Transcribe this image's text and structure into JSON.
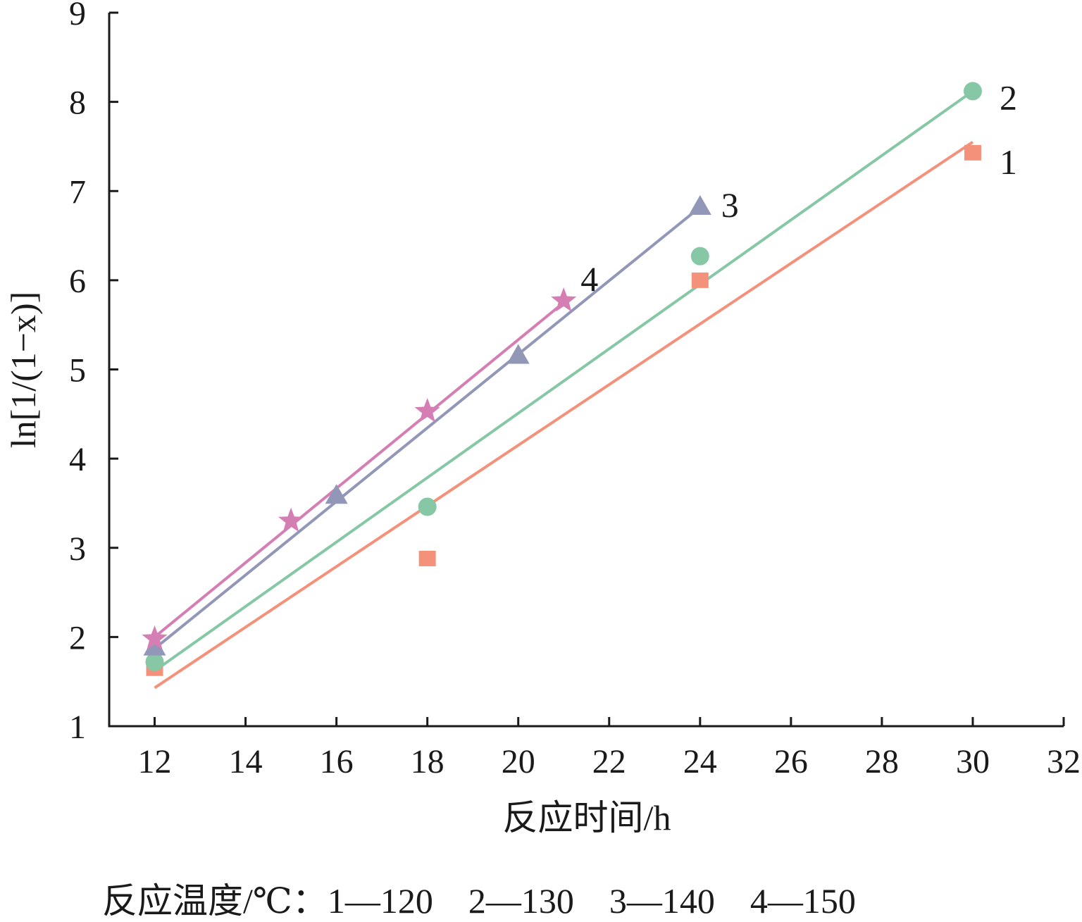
{
  "chart_data": {
    "type": "scatter",
    "xlabel": "反应时间/h",
    "ylabel": "ln[1/(1−x)]",
    "xlim": [
      11,
      32
    ],
    "ylim": [
      1,
      9
    ],
    "xticks": [
      12,
      14,
      16,
      18,
      20,
      22,
      24,
      26,
      28,
      30,
      32
    ],
    "yticks": [
      1,
      2,
      3,
      4,
      5,
      6,
      7,
      8,
      9
    ],
    "grid": false,
    "caption": "反应温度/℃：1—120　2—130　3—140　4—150",
    "series": [
      {
        "label": "1",
        "marker": "square",
        "color": "#f4917a",
        "points": [
          [
            12,
            1.65
          ],
          [
            18,
            2.88
          ],
          [
            24,
            6.0
          ],
          [
            30,
            7.43
          ]
        ],
        "fit": [
          [
            12,
            1.43
          ],
          [
            30,
            7.55
          ]
        ]
      },
      {
        "label": "2",
        "marker": "circle",
        "color": "#86c7a6",
        "points": [
          [
            12,
            1.72
          ],
          [
            18,
            3.46
          ],
          [
            24,
            6.27
          ],
          [
            30,
            8.12
          ]
        ],
        "fit": [
          [
            12,
            1.62
          ],
          [
            30,
            8.12
          ]
        ]
      },
      {
        "label": "3",
        "marker": "triangle",
        "color": "#9297b8",
        "points": [
          [
            12,
            1.88
          ],
          [
            16,
            3.58
          ],
          [
            20,
            5.15
          ],
          [
            24,
            6.82
          ]
        ],
        "fit": [
          [
            12,
            1.87
          ],
          [
            24,
            6.82
          ]
        ]
      },
      {
        "label": "4",
        "marker": "star",
        "color": "#d57eb4",
        "points": [
          [
            12,
            1.98
          ],
          [
            15,
            3.3
          ],
          [
            18,
            4.53
          ],
          [
            21,
            5.77
          ]
        ],
        "fit": [
          [
            12,
            2.0
          ],
          [
            21,
            5.75
          ]
        ]
      }
    ]
  }
}
